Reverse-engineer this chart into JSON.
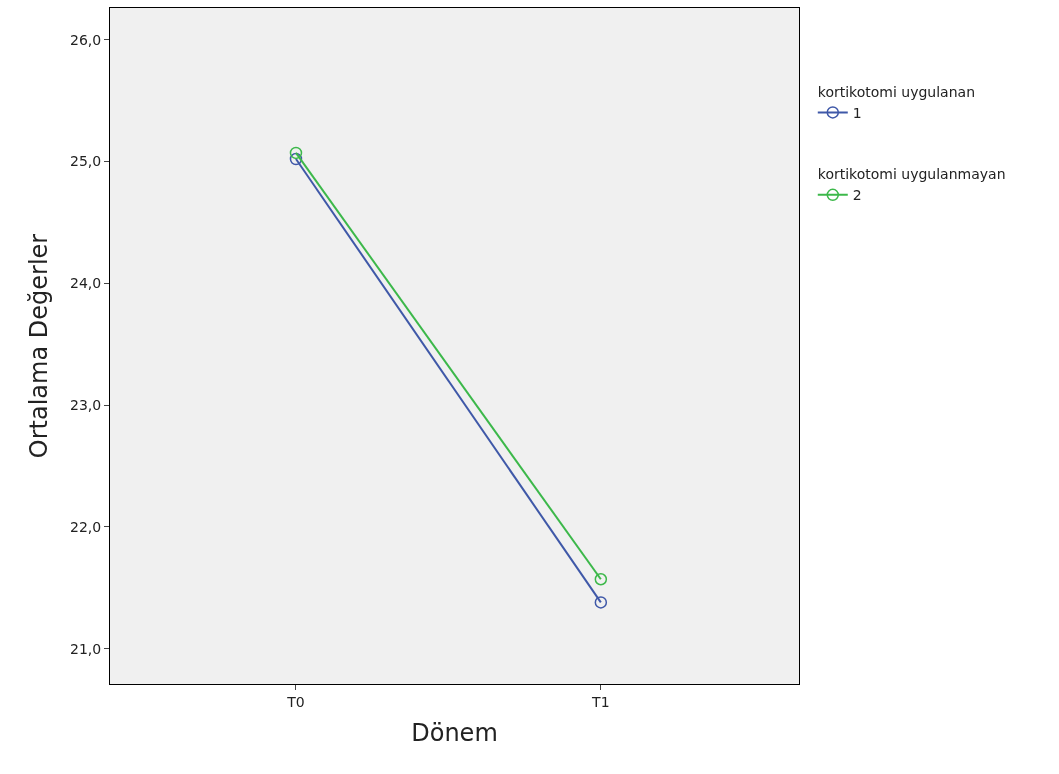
{
  "chart_data": {
    "type": "line",
    "xlabel": "Dönem",
    "ylabel": "Ortalama Değerler",
    "categories": [
      "T0",
      "T1"
    ],
    "series": [
      {
        "name": "1",
        "color": "#3f58a8",
        "values": [
          25.02,
          21.38
        ]
      },
      {
        "name": "2",
        "color": "#3cb84a",
        "values": [
          25.07,
          21.57
        ]
      }
    ],
    "annotations": [
      "kortikotomi uygulanan",
      "kortikotomi uygulanmayan"
    ],
    "ylim": [
      20.71,
      26.26
    ],
    "yticks": [
      {
        "value": 21,
        "label": "21,0"
      },
      {
        "value": 22,
        "label": "22,0"
      },
      {
        "value": 23,
        "label": "23,0"
      },
      {
        "value": 24,
        "label": "24,0"
      },
      {
        "value": 25,
        "label": "25,0"
      },
      {
        "value": 26,
        "label": "26,0"
      }
    ],
    "grid": false,
    "legend": "right",
    "marker": "circle",
    "line_style": "solid"
  }
}
